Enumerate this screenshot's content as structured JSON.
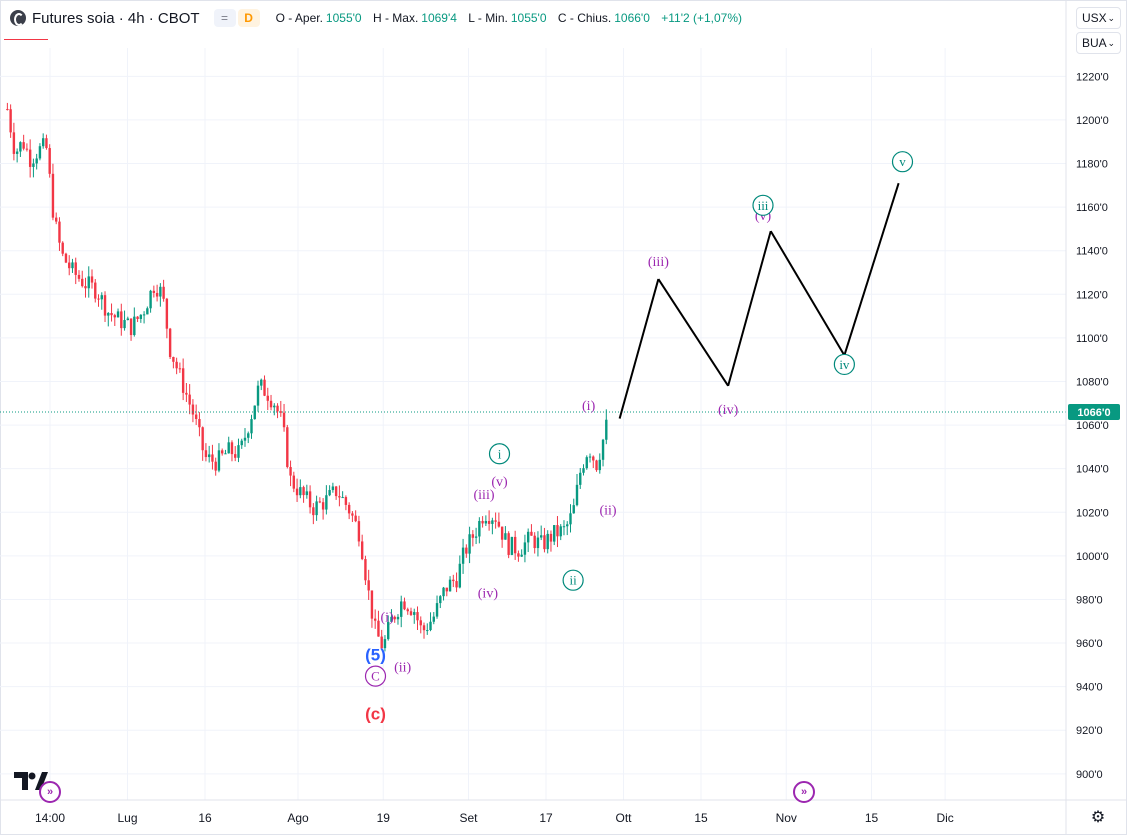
{
  "header": {
    "title": "Futures soia · 4h · CBOT",
    "eq_badge": "=",
    "delay_badge": "D",
    "open_label": "O - Aper.",
    "open_value": "1055'0",
    "high_label": "H - Max.",
    "high_value": "1069'4",
    "low_label": "L - Min.",
    "low_value": "1055'0",
    "close_label": "C - Chius.",
    "close_value": "1066'0",
    "change_value": "+11'2 (+1,07%)"
  },
  "controls": {
    "currency": "USX",
    "unit": "BUA"
  },
  "colors": {
    "up": "#089981",
    "down": "#f23645",
    "wave_purple": "#9c27b0",
    "wave_teal": "#00897b",
    "wave_blue": "#2962ff",
    "wave_red": "#f23645",
    "projection": "#000000",
    "price_tag": "#089981"
  },
  "chart_data": {
    "type": "line",
    "title": "",
    "ylim": [
      888,
      1233
    ],
    "y_ticks": [
      {
        "value": 1220,
        "label": "1220'0"
      },
      {
        "value": 1200,
        "label": "1200'0"
      },
      {
        "value": 1180,
        "label": "1180'0"
      },
      {
        "value": 1160,
        "label": "1160'0"
      },
      {
        "value": 1140,
        "label": "1140'0"
      },
      {
        "value": 1120,
        "label": "1120'0"
      },
      {
        "value": 1100,
        "label": "1100'0"
      },
      {
        "value": 1080,
        "label": "1080'0"
      },
      {
        "value": 1060,
        "label": "1060'0"
      },
      {
        "value": 1040,
        "label": "1040'0"
      },
      {
        "value": 1020,
        "label": "1020'0"
      },
      {
        "value": 1000,
        "label": "1000'0"
      },
      {
        "value": 980,
        "label": "980'0"
      },
      {
        "value": 960,
        "label": "960'0"
      },
      {
        "value": 940,
        "label": "940'0"
      },
      {
        "value": 920,
        "label": "920'0"
      },
      {
        "value": 900,
        "label": "900'0"
      }
    ],
    "x_ticks": [
      {
        "t": 0.0,
        "label": "14:00"
      },
      {
        "t": 10.0,
        "label": "Lug"
      },
      {
        "t": 20.0,
        "label": "16"
      },
      {
        "t": 32.0,
        "label": "Ago"
      },
      {
        "t": 43.0,
        "label": "19"
      },
      {
        "t": 54.0,
        "label": "Set"
      },
      {
        "t": 64.0,
        "label": "17"
      },
      {
        "t": 74.0,
        "label": "Ott"
      },
      {
        "t": 84.0,
        "label": "15"
      },
      {
        "t": 95.0,
        "label": "Nov"
      },
      {
        "t": 106.0,
        "label": "15"
      },
      {
        "t": 115.5,
        "label": "Dic"
      }
    ],
    "last_price": {
      "value": 1066,
      "label": "1066'0"
    },
    "price_path": [
      {
        "t": -5.5,
        "v": 1205
      },
      {
        "t": -4.5,
        "v": 1185
      },
      {
        "t": -3.5,
        "v": 1190
      },
      {
        "t": -2.5,
        "v": 1182
      },
      {
        "t": -1.5,
        "v": 1186
      },
      {
        "t": -0.5,
        "v": 1188
      },
      {
        "t": 0.5,
        "v": 1155
      },
      {
        "t": 1.5,
        "v": 1138
      },
      {
        "t": 3.0,
        "v": 1130
      },
      {
        "t": 4.5,
        "v": 1125
      },
      {
        "t": 6.0,
        "v": 1122
      },
      {
        "t": 7.5,
        "v": 1112
      },
      {
        "t": 9.0,
        "v": 1108
      },
      {
        "t": 10.5,
        "v": 1105
      },
      {
        "t": 12.0,
        "v": 1112
      },
      {
        "t": 13.5,
        "v": 1125
      },
      {
        "t": 14.5,
        "v": 1120
      },
      {
        "t": 15.5,
        "v": 1095
      },
      {
        "t": 17.0,
        "v": 1080
      },
      {
        "t": 18.5,
        "v": 1065
      },
      {
        "t": 20.0,
        "v": 1045
      },
      {
        "t": 21.5,
        "v": 1043
      },
      {
        "t": 23.0,
        "v": 1048
      },
      {
        "t": 24.5,
        "v": 1047
      },
      {
        "t": 26.0,
        "v": 1065
      },
      {
        "t": 27.0,
        "v": 1078
      },
      {
        "t": 28.0,
        "v": 1075
      },
      {
        "t": 29.0,
        "v": 1070
      },
      {
        "t": 30.0,
        "v": 1060
      },
      {
        "t": 31.0,
        "v": 1035
      },
      {
        "t": 32.5,
        "v": 1028
      },
      {
        "t": 34.0,
        "v": 1022
      },
      {
        "t": 35.5,
        "v": 1025
      },
      {
        "t": 37.0,
        "v": 1030
      },
      {
        "t": 38.5,
        "v": 1022
      },
      {
        "t": 40.0,
        "v": 1010
      },
      {
        "t": 41.0,
        "v": 985
      },
      {
        "t": 42.0,
        "v": 965
      },
      {
        "t": 43.0,
        "v": 958
      },
      {
        "t": 44.0,
        "v": 970
      },
      {
        "t": 45.5,
        "v": 980
      },
      {
        "t": 47.0,
        "v": 975
      },
      {
        "t": 48.0,
        "v": 965
      },
      {
        "t": 49.5,
        "v": 972
      },
      {
        "t": 51.0,
        "v": 985
      },
      {
        "t": 52.5,
        "v": 990
      },
      {
        "t": 53.5,
        "v": 1002
      },
      {
        "t": 55.0,
        "v": 1012
      },
      {
        "t": 56.0,
        "v": 1020
      },
      {
        "t": 57.5,
        "v": 1018
      },
      {
        "t": 59.0,
        "v": 1005
      },
      {
        "t": 60.5,
        "v": 1003
      },
      {
        "t": 62.0,
        "v": 1008
      },
      {
        "t": 63.5,
        "v": 1005
      },
      {
        "t": 65.0,
        "v": 1010
      },
      {
        "t": 66.5,
        "v": 1012
      },
      {
        "t": 67.5,
        "v": 1020
      },
      {
        "t": 68.5,
        "v": 1040
      },
      {
        "t": 69.5,
        "v": 1050
      },
      {
        "t": 70.5,
        "v": 1042
      },
      {
        "t": 71.5,
        "v": 1055
      },
      {
        "t": 72.2,
        "v": 1066
      }
    ],
    "projection": {
      "name": "",
      "points": [
        {
          "t": 73.5,
          "v": 1063
        },
        {
          "t": 78.5,
          "v": 1127
        },
        {
          "t": 87.5,
          "v": 1078
        },
        {
          "t": 93.0,
          "v": 1149
        },
        {
          "t": 102.5,
          "v": 1092
        },
        {
          "t": 109.5,
          "v": 1171
        }
      ]
    },
    "wave_labels": [
      {
        "t": 42.0,
        "v": 952,
        "text": "(5)",
        "color": "wave_blue",
        "style": "paren-bold"
      },
      {
        "t": 42.0,
        "v": 943,
        "text": "C",
        "color": "wave_purple",
        "style": "circle"
      },
      {
        "t": 42.0,
        "v": 925,
        "text": "(c)",
        "color": "wave_red",
        "style": "paren-bold"
      },
      {
        "t": 43.5,
        "v": 970,
        "text": "(i)",
        "color": "wave_purple",
        "style": "plain"
      },
      {
        "t": 45.5,
        "v": 947,
        "text": "(ii)",
        "color": "wave_purple",
        "style": "plain"
      },
      {
        "t": 56.0,
        "v": 1026,
        "text": "(iii)",
        "color": "wave_purple",
        "style": "plain"
      },
      {
        "t": 56.5,
        "v": 981,
        "text": "(iv)",
        "color": "wave_purple",
        "style": "plain"
      },
      {
        "t": 58.0,
        "v": 1032,
        "text": "(v)",
        "color": "wave_purple",
        "style": "plain"
      },
      {
        "t": 58.0,
        "v": 1045,
        "text": "i",
        "color": "wave_teal",
        "style": "circle"
      },
      {
        "t": 67.5,
        "v": 987,
        "text": "ii",
        "color": "wave_teal",
        "style": "circle"
      },
      {
        "t": 69.5,
        "v": 1067,
        "text": "(i)",
        "color": "wave_purple",
        "style": "plain"
      },
      {
        "t": 72.0,
        "v": 1019,
        "text": "(ii)",
        "color": "wave_purple",
        "style": "plain"
      },
      {
        "t": 78.5,
        "v": 1133,
        "text": "(iii)",
        "color": "wave_purple",
        "style": "plain"
      },
      {
        "t": 87.5,
        "v": 1065,
        "text": "(iv)",
        "color": "wave_purple",
        "style": "plain"
      },
      {
        "t": 92.0,
        "v": 1154,
        "text": "(v)",
        "color": "wave_purple",
        "style": "plain"
      },
      {
        "t": 92.0,
        "v": 1159,
        "text": "iii",
        "color": "wave_teal",
        "style": "circle"
      },
      {
        "t": 102.5,
        "v": 1086,
        "text": "iv",
        "color": "wave_teal",
        "style": "circle"
      },
      {
        "t": 110.0,
        "v": 1179,
        "text": "v",
        "color": "wave_teal",
        "style": "circle"
      }
    ]
  }
}
